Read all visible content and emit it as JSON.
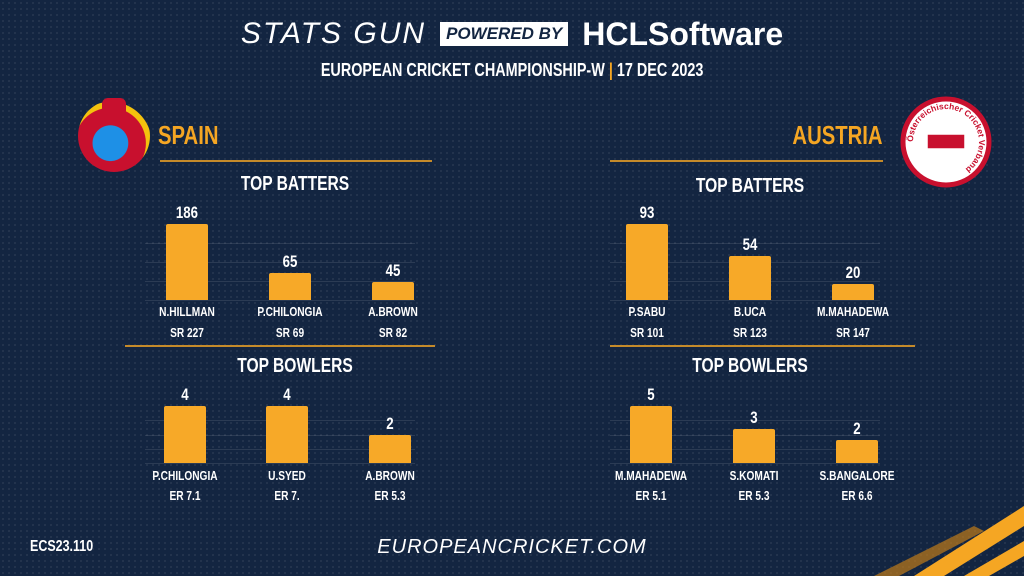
{
  "header": {
    "brand": "STATS GUN",
    "powered": "POWERED BY",
    "sponsor": "HCLSoftware",
    "event": "EUROPEAN CRICKET CHAMPIONSHIP-W",
    "date": "17  DEC 2023"
  },
  "teams": {
    "left": "SPAIN",
    "right": "AUSTRIA",
    "right_logo_text": "Österreichischer Cricket Verband"
  },
  "colors": {
    "bar": "#f7a928",
    "accent": "#f5a623",
    "background": "#132541"
  },
  "chart_data": [
    {
      "id": "spain-batters",
      "type": "bar",
      "title": "TOP BATTERS",
      "categories": [
        "N.HILLMAN",
        "P.CHILONGIA",
        "A.BROWN"
      ],
      "values": [
        186,
        65,
        45
      ],
      "sub": [
        "SR 227",
        "SR 69",
        "SR 82"
      ]
    },
    {
      "id": "spain-bowlers",
      "type": "bar",
      "title": "TOP BOWLERS",
      "categories": [
        "P.CHILONGIA",
        "U.SYED",
        "A.BROWN"
      ],
      "values": [
        4,
        4,
        2
      ],
      "sub": [
        "ER 7.1",
        "ER 7.",
        "ER 5.3"
      ]
    },
    {
      "id": "austria-batters",
      "type": "bar",
      "title": "TOP BATTERS",
      "categories": [
        "P.SABU",
        "B.UCA",
        "M.MAHADEWA"
      ],
      "values": [
        93,
        54,
        20
      ],
      "sub": [
        "SR 101",
        "SR 123",
        "SR 147"
      ]
    },
    {
      "id": "austria-bowlers",
      "type": "bar",
      "title": "TOP BOWLERS",
      "categories": [
        "M.MAHADEWA",
        "S.KOMATI",
        "S.BANGALORE"
      ],
      "values": [
        5,
        3,
        2
      ],
      "sub": [
        "ER 5.1",
        "ER 5.3",
        "ER 6.6"
      ]
    }
  ],
  "footer": {
    "code": "ECS23.110",
    "site": "EUROPEANCRICKET.COM"
  }
}
